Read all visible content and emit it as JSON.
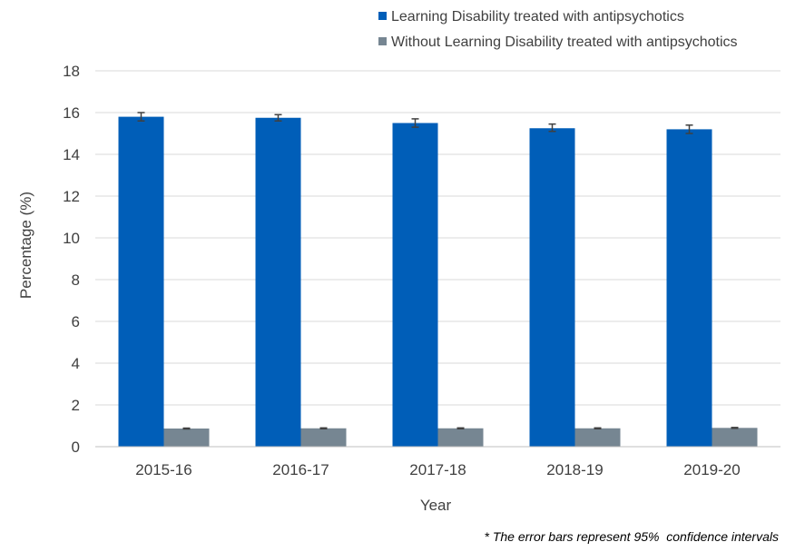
{
  "chart_data": {
    "type": "bar",
    "title": "",
    "xlabel": "Year",
    "ylabel": "Percentage (%)",
    "ylim": [
      0,
      18
    ],
    "yticks": [
      "0",
      "2",
      "4",
      "6",
      "8",
      "10",
      "12",
      "14",
      "16",
      "18"
    ],
    "categories": [
      "2015-16",
      "2016-17",
      "2017-18",
      "2018-19",
      "2019-20"
    ],
    "series": [
      {
        "name": "Learning Disability treated with antipsychotics",
        "color": "#005EB8",
        "values": [
          15.8,
          15.75,
          15.5,
          15.25,
          15.2
        ],
        "ci_low": [
          15.6,
          15.6,
          15.3,
          15.1,
          15.0
        ],
        "ci_high": [
          16.0,
          15.9,
          15.7,
          15.45,
          15.4
        ]
      },
      {
        "name": "Without Learning Disability treated with antipsychotics",
        "color": "#768692",
        "values": [
          0.87,
          0.88,
          0.88,
          0.88,
          0.9
        ],
        "ci_low": [
          0.85,
          0.86,
          0.86,
          0.86,
          0.88
        ],
        "ci_high": [
          0.89,
          0.9,
          0.9,
          0.9,
          0.92
        ]
      }
    ],
    "grid": true,
    "legend_position": "top-right",
    "footnote": "* The error bars represent 95%  confidence intervals"
  }
}
